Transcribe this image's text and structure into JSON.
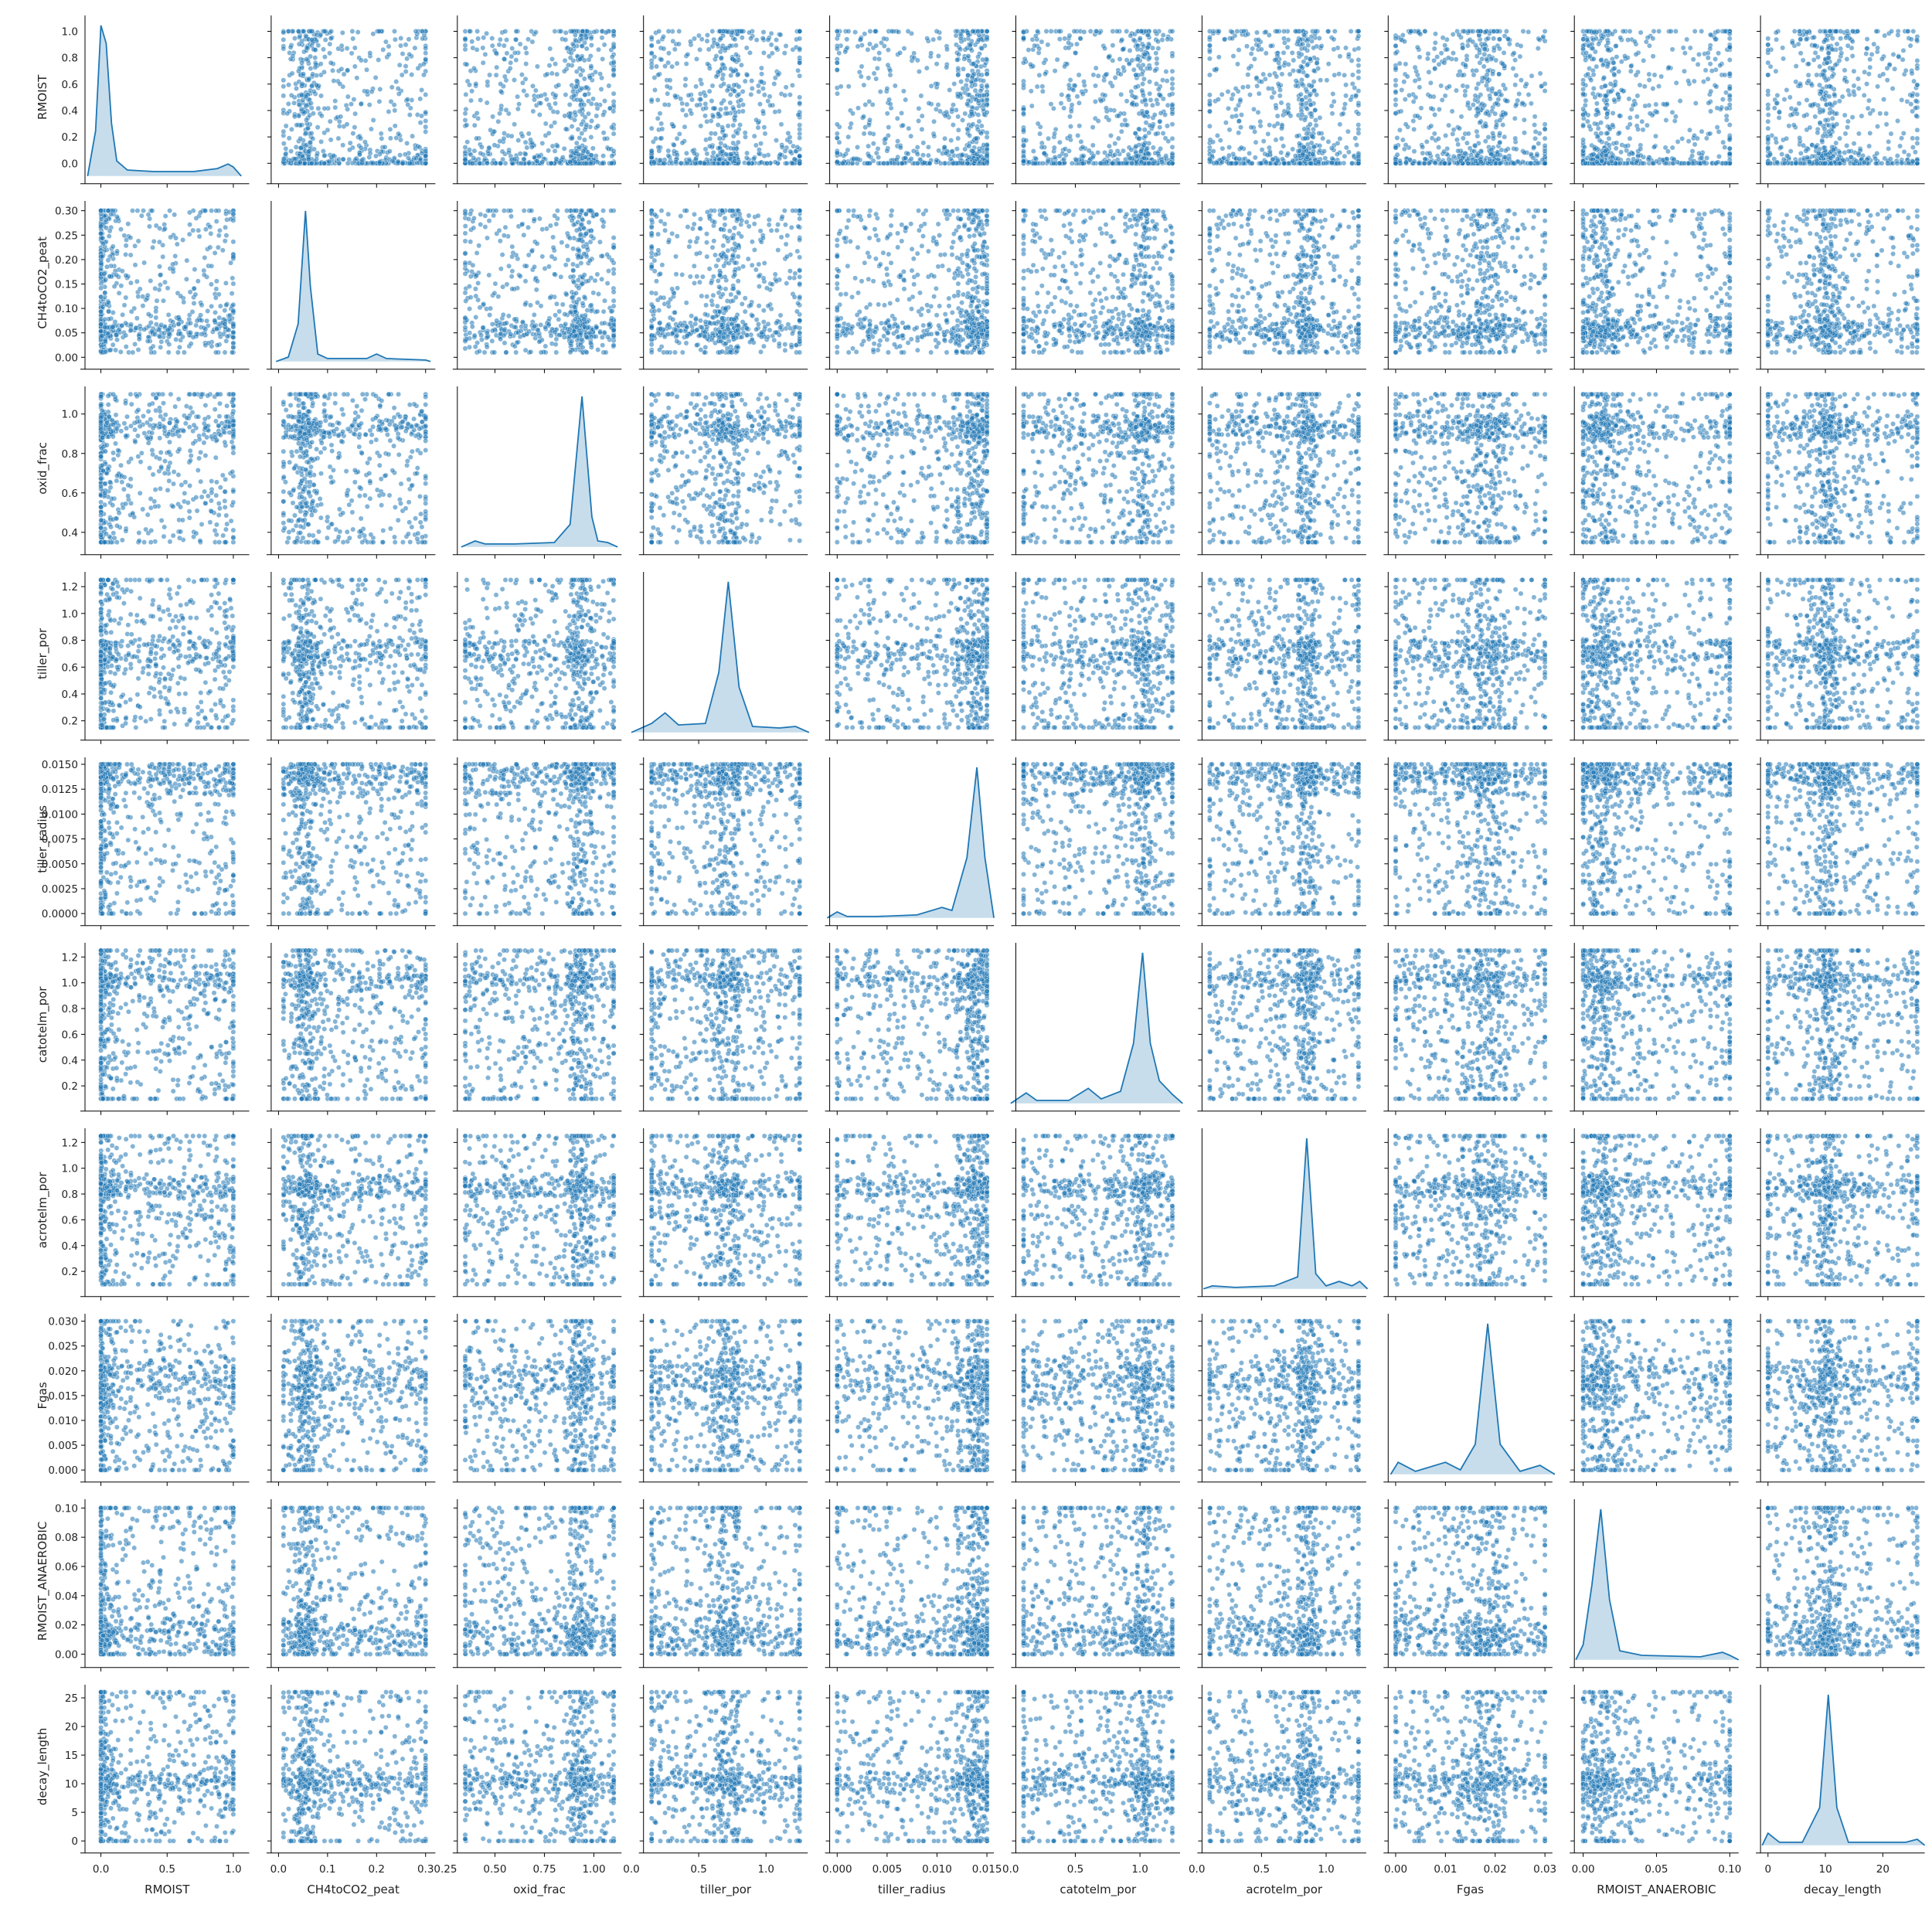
{
  "chart_data": {
    "type": "scatter",
    "subtype": "pairplot",
    "diagonal": "kde",
    "marker_color": "#1f77b4",
    "variables": [
      {
        "name": "RMOIST",
        "min": 0.0,
        "max": 1.0,
        "ticks": [
          0.0,
          0.5,
          1.0
        ],
        "tick_labels": [
          "0.0",
          "0.5",
          "1.0"
        ],
        "y_ticks": [
          0.0,
          0.2,
          0.4,
          0.6,
          0.8,
          1.0
        ],
        "y_tick_labels": [
          "0.0",
          "0.2",
          "0.4",
          "0.6",
          "0.8",
          "1.0"
        ],
        "axis_min": -0.12,
        "axis_max": 1.12,
        "kde": [
          [
            -0.1,
            0.0
          ],
          [
            -0.04,
            0.3
          ],
          [
            0.0,
            1.0
          ],
          [
            0.04,
            0.88
          ],
          [
            0.08,
            0.35
          ],
          [
            0.12,
            0.1
          ],
          [
            0.2,
            0.04
          ],
          [
            0.4,
            0.03
          ],
          [
            0.7,
            0.03
          ],
          [
            0.88,
            0.05
          ],
          [
            0.96,
            0.08
          ],
          [
            1.0,
            0.06
          ],
          [
            1.06,
            0.0
          ]
        ]
      },
      {
        "name": "CH4toCO2_peat",
        "min": 0.01,
        "max": 0.3,
        "ticks": [
          0.0,
          0.1,
          0.2,
          0.3
        ],
        "tick_labels": [
          "0.0",
          "0.1",
          "0.2",
          "0.3"
        ],
        "y_ticks": [
          0.0,
          0.05,
          0.1,
          0.15,
          0.2,
          0.25,
          0.3
        ],
        "y_tick_labels": [
          "0.00",
          "0.05",
          "0.10",
          "0.15",
          "0.20",
          "0.25",
          "0.30"
        ],
        "axis_min": -0.015,
        "axis_max": 0.32,
        "kde": [
          [
            -0.005,
            0.0
          ],
          [
            0.02,
            0.03
          ],
          [
            0.04,
            0.25
          ],
          [
            0.055,
            1.0
          ],
          [
            0.065,
            0.5
          ],
          [
            0.08,
            0.05
          ],
          [
            0.1,
            0.02
          ],
          [
            0.18,
            0.02
          ],
          [
            0.2,
            0.05
          ],
          [
            0.22,
            0.02
          ],
          [
            0.3,
            0.01
          ],
          [
            0.31,
            0.0
          ]
        ]
      },
      {
        "name": "oxid_frac",
        "min": 0.35,
        "max": 1.1,
        "ticks": [
          0.25,
          0.5,
          0.75,
          1.0
        ],
        "tick_labels": [
          "0.25",
          "0.50",
          "0.75",
          "1.00"
        ],
        "y_ticks": [
          0.4,
          0.6,
          0.8,
          1.0
        ],
        "y_tick_labels": [
          "0.4",
          "0.6",
          "0.8",
          "1.0"
        ],
        "axis_min": 0.31,
        "axis_max": 1.14,
        "kde": [
          [
            0.33,
            0.0
          ],
          [
            0.4,
            0.04
          ],
          [
            0.45,
            0.02
          ],
          [
            0.6,
            0.02
          ],
          [
            0.8,
            0.03
          ],
          [
            0.88,
            0.15
          ],
          [
            0.94,
            1.0
          ],
          [
            0.99,
            0.2
          ],
          [
            1.02,
            0.04
          ],
          [
            1.07,
            0.03
          ],
          [
            1.12,
            0.0
          ]
        ]
      },
      {
        "name": "tiller_por",
        "min": 0.15,
        "max": 1.25,
        "ticks": [
          0.0,
          0.5,
          1.0
        ],
        "tick_labels": [
          "0.0",
          "0.5",
          "1.0"
        ],
        "y_ticks": [
          0.2,
          0.4,
          0.6,
          0.8,
          1.0,
          1.2
        ],
        "y_tick_labels": [
          "0.2",
          "0.4",
          "0.6",
          "0.8",
          "1.0",
          "1.2"
        ],
        "axis_min": 0.09,
        "axis_max": 1.31,
        "kde": [
          [
            0.0,
            0.0
          ],
          [
            0.15,
            0.06
          ],
          [
            0.25,
            0.13
          ],
          [
            0.35,
            0.05
          ],
          [
            0.55,
            0.06
          ],
          [
            0.65,
            0.4
          ],
          [
            0.72,
            1.0
          ],
          [
            0.8,
            0.3
          ],
          [
            0.9,
            0.04
          ],
          [
            1.1,
            0.03
          ],
          [
            1.22,
            0.04
          ],
          [
            1.32,
            0.0
          ]
        ]
      },
      {
        "name": "tiller_radius",
        "min": 0.0,
        "max": 0.015,
        "ticks": [
          0.0,
          0.005,
          0.01,
          0.015
        ],
        "tick_labels": [
          "0.000",
          "0.005",
          "0.010",
          "0.015"
        ],
        "y_ticks": [
          0.0,
          0.0025,
          0.005,
          0.0075,
          0.01,
          0.0125,
          0.015
        ],
        "y_tick_labels": [
          "0.0000",
          "0.0025",
          "0.0050",
          "0.0075",
          "0.0100",
          "0.0125",
          "0.0150"
        ],
        "axis_min": -0.00075,
        "axis_max": 0.0157,
        "kde": [
          [
            -0.001,
            0.0
          ],
          [
            0.0,
            0.04
          ],
          [
            0.001,
            0.01
          ],
          [
            0.004,
            0.01
          ],
          [
            0.008,
            0.02
          ],
          [
            0.0105,
            0.07
          ],
          [
            0.0115,
            0.05
          ],
          [
            0.013,
            0.4
          ],
          [
            0.014,
            1.0
          ],
          [
            0.0148,
            0.4
          ],
          [
            0.0157,
            0.0
          ]
        ]
      },
      {
        "name": "catotelm_por",
        "min": 0.1,
        "max": 1.25,
        "ticks": [
          0.0,
          0.5,
          1.0
        ],
        "tick_labels": [
          "0.0",
          "0.5",
          "1.0"
        ],
        "y_ticks": [
          0.2,
          0.4,
          0.6,
          0.8,
          1.0,
          1.2
        ],
        "y_tick_labels": [
          "0.2",
          "0.4",
          "0.6",
          "0.8",
          "1.0",
          "1.2"
        ],
        "axis_min": 0.04,
        "axis_max": 1.31,
        "kde": [
          [
            0.0,
            0.0
          ],
          [
            0.12,
            0.07
          ],
          [
            0.2,
            0.02
          ],
          [
            0.45,
            0.02
          ],
          [
            0.6,
            0.1
          ],
          [
            0.7,
            0.03
          ],
          [
            0.85,
            0.08
          ],
          [
            0.95,
            0.4
          ],
          [
            1.02,
            1.0
          ],
          [
            1.08,
            0.4
          ],
          [
            1.15,
            0.15
          ],
          [
            1.25,
            0.06
          ],
          [
            1.33,
            0.0
          ]
        ]
      },
      {
        "name": "acrotelm_por",
        "min": 0.1,
        "max": 1.25,
        "ticks": [
          0.0,
          0.5,
          1.0
        ],
        "tick_labels": [
          "0.0",
          "0.5",
          "1.0"
        ],
        "y_ticks": [
          0.2,
          0.4,
          0.6,
          0.8,
          1.0,
          1.2
        ],
        "y_tick_labels": [
          "0.2",
          "0.4",
          "0.6",
          "0.8",
          "1.0",
          "1.2"
        ],
        "axis_min": 0.04,
        "axis_max": 1.31,
        "kde": [
          [
            0.05,
            0.0
          ],
          [
            0.12,
            0.02
          ],
          [
            0.3,
            0.01
          ],
          [
            0.6,
            0.02
          ],
          [
            0.78,
            0.08
          ],
          [
            0.85,
            1.0
          ],
          [
            0.92,
            0.1
          ],
          [
            1.0,
            0.02
          ],
          [
            1.1,
            0.05
          ],
          [
            1.2,
            0.02
          ],
          [
            1.26,
            0.05
          ],
          [
            1.32,
            0.0
          ]
        ]
      },
      {
        "name": "Fgas",
        "min": 0.0,
        "max": 0.03,
        "ticks": [
          0.0,
          0.01,
          0.02,
          0.03
        ],
        "tick_labels": [
          "0.00",
          "0.01",
          "0.02",
          "0.03"
        ],
        "y_ticks": [
          0.0,
          0.005,
          0.01,
          0.015,
          0.02,
          0.025,
          0.03
        ],
        "y_tick_labels": [
          "0.000",
          "0.005",
          "0.010",
          "0.015",
          "0.020",
          "0.025",
          "0.030"
        ],
        "axis_min": -0.0015,
        "axis_max": 0.0315,
        "kde": [
          [
            -0.001,
            0.0
          ],
          [
            0.0005,
            0.08
          ],
          [
            0.004,
            0.02
          ],
          [
            0.01,
            0.08
          ],
          [
            0.013,
            0.03
          ],
          [
            0.016,
            0.2
          ],
          [
            0.0185,
            1.0
          ],
          [
            0.021,
            0.2
          ],
          [
            0.025,
            0.02
          ],
          [
            0.029,
            0.06
          ],
          [
            0.032,
            0.0
          ]
        ]
      },
      {
        "name": "RMOIST_ANAEROBIC",
        "min": 0.0,
        "max": 0.1,
        "ticks": [
          0.0,
          0.05,
          0.1
        ],
        "tick_labels": [
          "0.00",
          "0.05",
          "0.10"
        ],
        "y_ticks": [
          0.0,
          0.02,
          0.04,
          0.06,
          0.08,
          0.1
        ],
        "y_tick_labels": [
          "0.00",
          "0.02",
          "0.04",
          "0.06",
          "0.08",
          "0.10"
        ],
        "axis_min": -0.006,
        "axis_max": 0.106,
        "kde": [
          [
            -0.005,
            0.0
          ],
          [
            0.0,
            0.1
          ],
          [
            0.006,
            0.5
          ],
          [
            0.012,
            1.0
          ],
          [
            0.018,
            0.4
          ],
          [
            0.025,
            0.06
          ],
          [
            0.04,
            0.03
          ],
          [
            0.08,
            0.02
          ],
          [
            0.095,
            0.05
          ],
          [
            0.1,
            0.03
          ],
          [
            0.106,
            0.0
          ]
        ]
      },
      {
        "name": "decay_length",
        "min": 0.0,
        "max": 26.0,
        "ticks": [
          0,
          10,
          20
        ],
        "tick_labels": [
          "0",
          "10",
          "20"
        ],
        "y_ticks": [
          0,
          5,
          10,
          15,
          20,
          25
        ],
        "y_tick_labels": [
          "0",
          "5",
          "10",
          "15",
          "20",
          "25"
        ],
        "axis_min": -1.3,
        "axis_max": 27.3,
        "kde": [
          [
            -1.0,
            0.0
          ],
          [
            0.0,
            0.08
          ],
          [
            2.0,
            0.02
          ],
          [
            6.0,
            0.02
          ],
          [
            9.0,
            0.25
          ],
          [
            10.5,
            1.0
          ],
          [
            12.0,
            0.25
          ],
          [
            14.0,
            0.02
          ],
          [
            24.0,
            0.02
          ],
          [
            26.0,
            0.04
          ],
          [
            27.3,
            0.0
          ]
        ]
      }
    ]
  }
}
